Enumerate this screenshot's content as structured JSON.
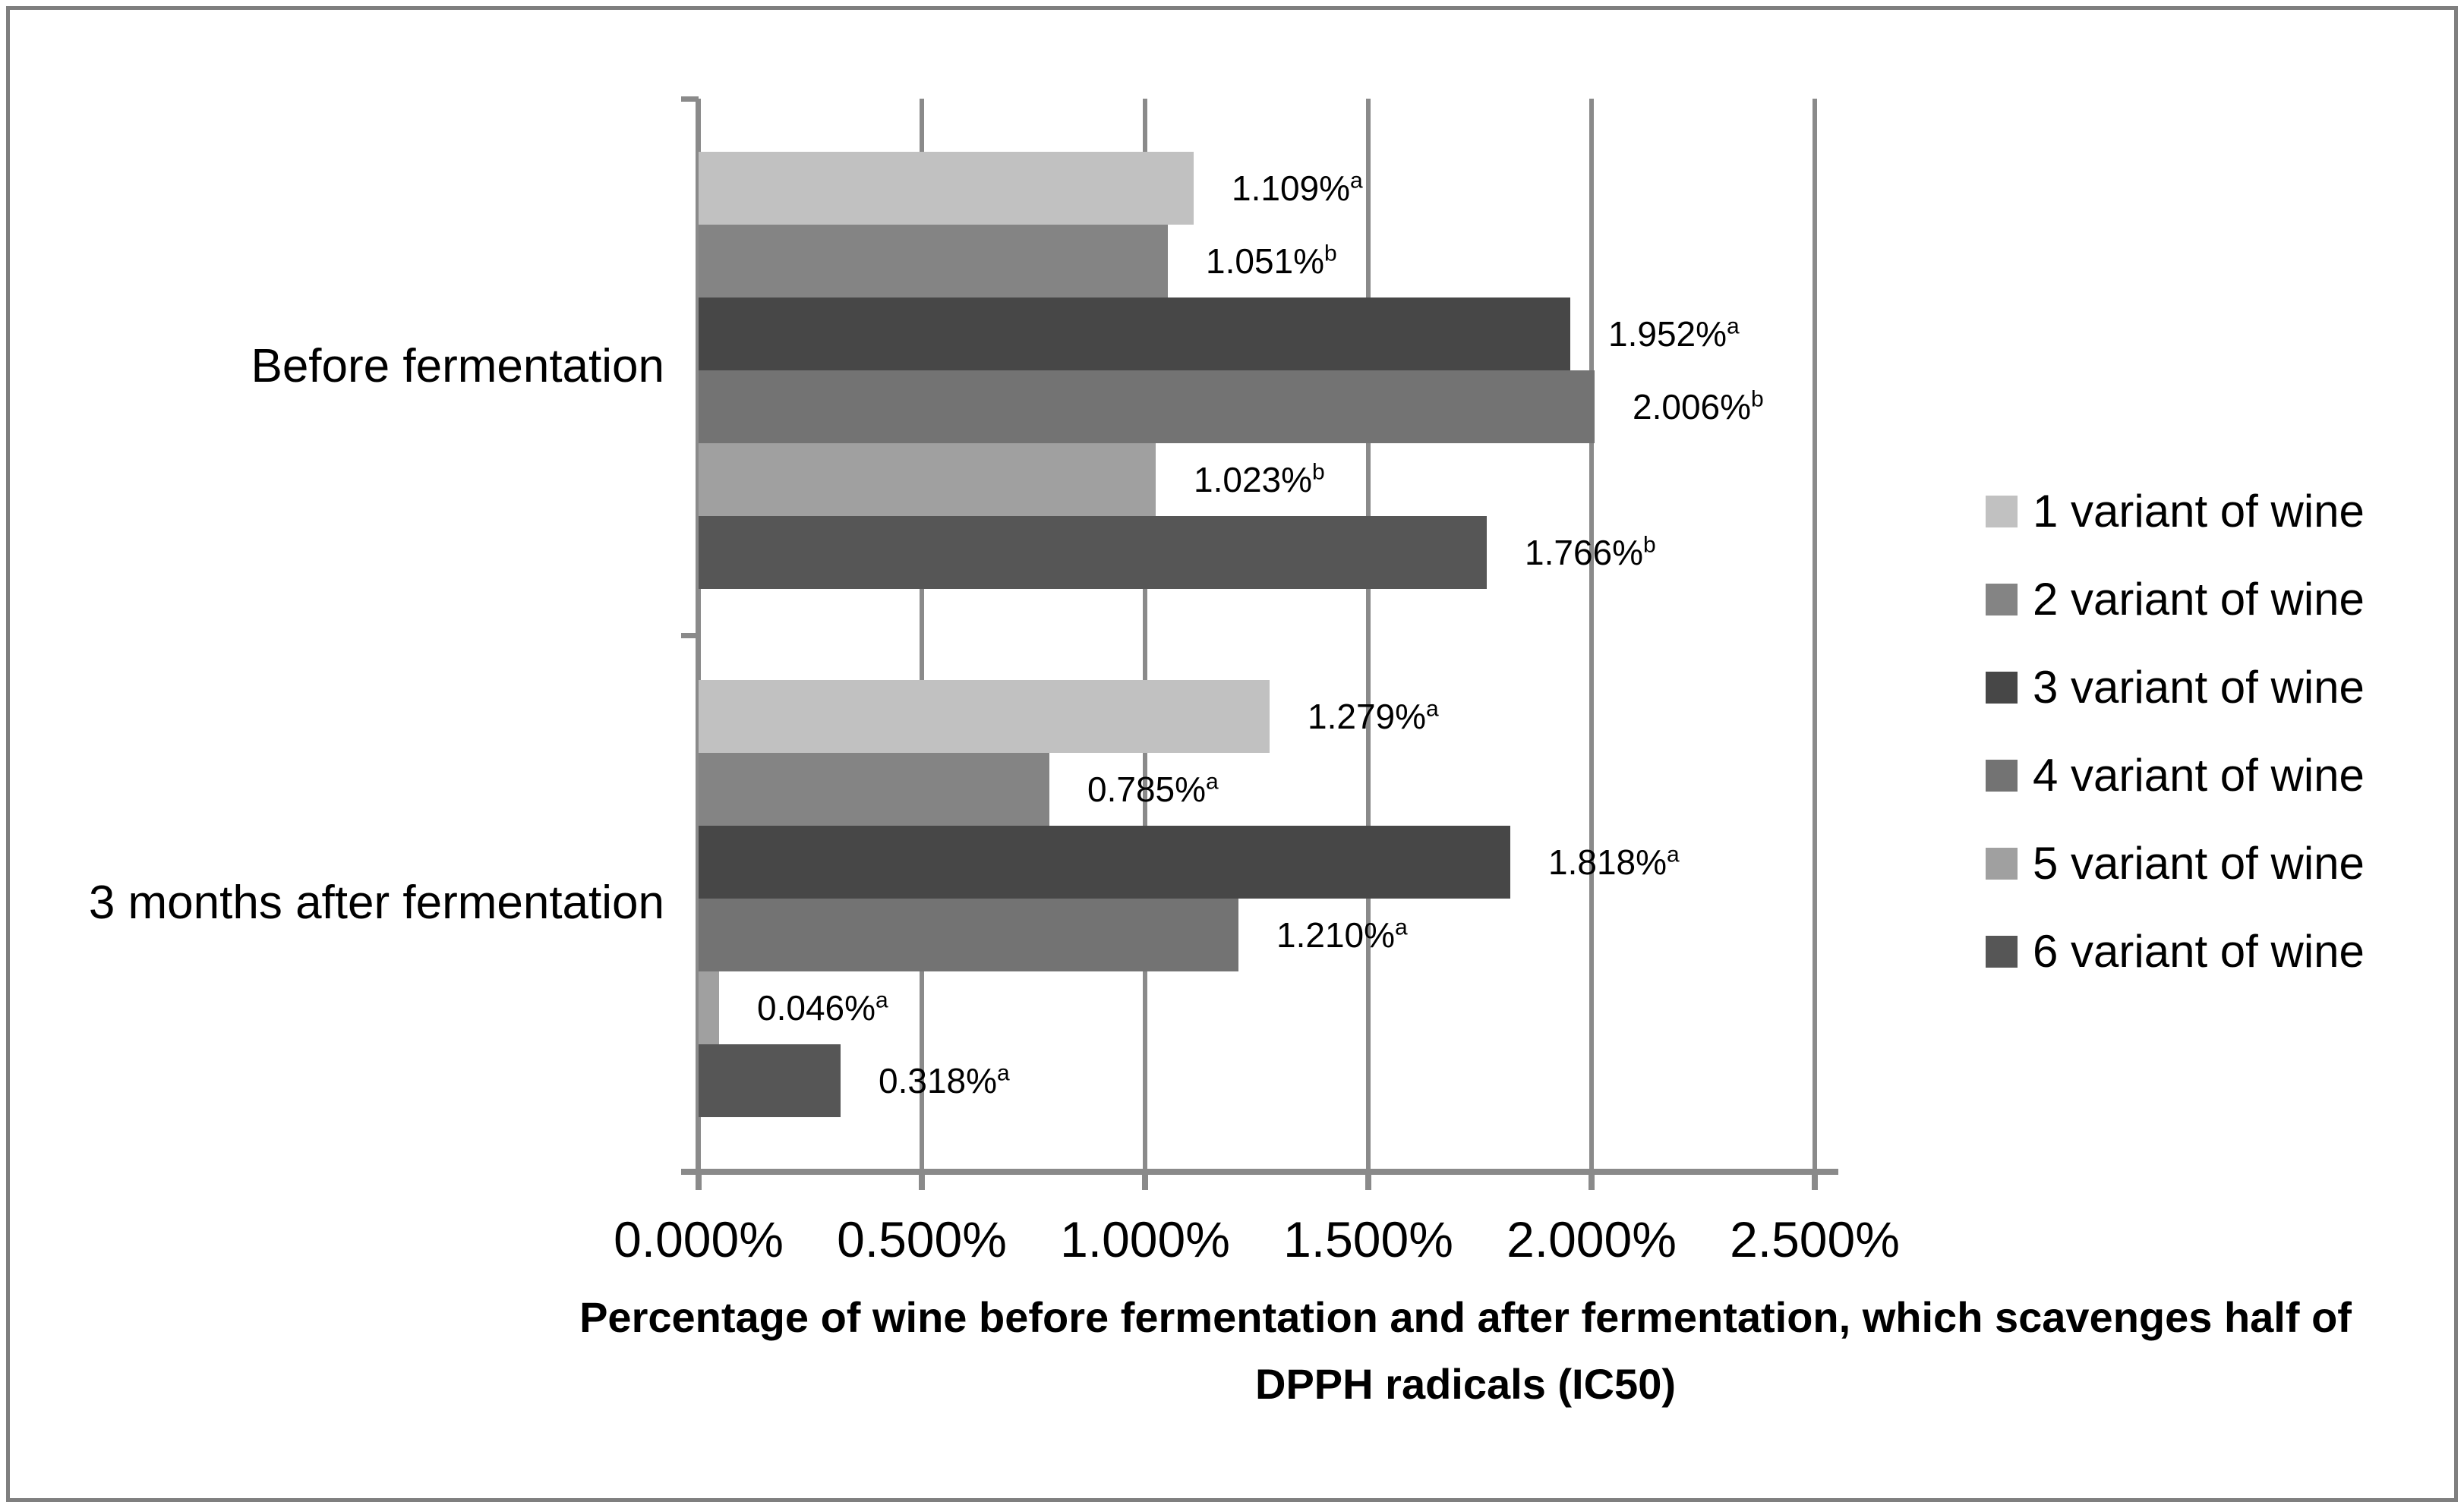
{
  "chart_data": {
    "type": "bar",
    "orientation": "horizontal",
    "categories": [
      "Before fermentation",
      "3 months after fermentation"
    ],
    "series": [
      {
        "name": "1 variant of wine",
        "color": "#c1c1c1",
        "values": [
          1.109,
          1.279
        ],
        "points": [
          {
            "label": "1.109%",
            "sup": "a"
          },
          {
            "label": "1.279%",
            "sup": "a"
          }
        ]
      },
      {
        "name": "2 variant of wine",
        "color": "#848484",
        "values": [
          1.051,
          0.785
        ],
        "points": [
          {
            "label": "1.051%",
            "sup": "b"
          },
          {
            "label": "0.785%",
            "sup": "a"
          }
        ]
      },
      {
        "name": "3 variant of wine",
        "color": "#474747",
        "values": [
          1.952,
          1.818
        ],
        "points": [
          {
            "label": "1.952%",
            "sup": "a"
          },
          {
            "label": "1.818%",
            "sup": "a"
          }
        ]
      },
      {
        "name": "4 variant of wine",
        "color": "#737373",
        "values": [
          2.006,
          1.21
        ],
        "points": [
          {
            "label": "2.006%",
            "sup": "b"
          },
          {
            "label": "1.210%",
            "sup": "a"
          }
        ]
      },
      {
        "name": "5 variant of wine",
        "color": "#a0a0a0",
        "values": [
          1.023,
          0.046
        ],
        "points": [
          {
            "label": "1.023%",
            "sup": "b"
          },
          {
            "label": "0.046%",
            "sup": "a"
          }
        ]
      },
      {
        "name": "6 variant of wine",
        "color": "#565656",
        "values": [
          1.766,
          0.318
        ],
        "points": [
          {
            "label": "1.766%",
            "sup": "b"
          },
          {
            "label": "0.318%",
            "sup": "a"
          }
        ]
      }
    ],
    "x_ticks": [
      "0.000%",
      "0.500%",
      "1.000%",
      "1.500%",
      "2.000%",
      "2.500%"
    ],
    "xlim": [
      0,
      2.5
    ],
    "grid": true,
    "legend_position": "right",
    "xlabel": "Percentage of wine before fermentation and after fermentation, which scavenges half of DPPH radicals (IC50)",
    "xlabel_lines": [
      "Percentage of wine before fermentation and after fermentation, which scavenges half of",
      "DPPH radicals (IC50)"
    ],
    "axis_color": "#8a8a8a",
    "label_color": "#000000"
  }
}
